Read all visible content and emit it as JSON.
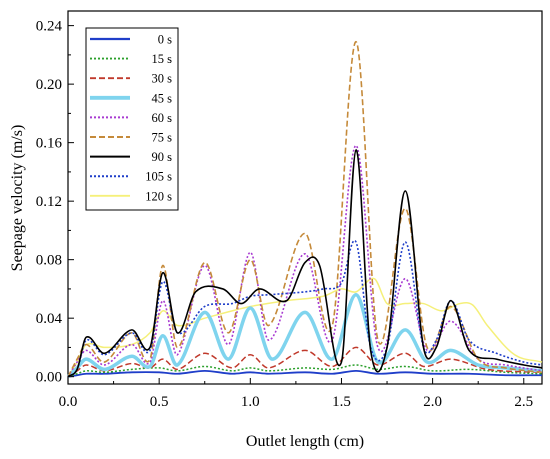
{
  "chart_data": {
    "type": "line",
    "xlabel": "Outlet length (cm)",
    "ylabel": "Seepage velocity (m/s)",
    "xlim": [
      0.0,
      2.6
    ],
    "ylim": [
      -0.005,
      0.25
    ],
    "xticks": [
      "0.0",
      "0.5",
      "1.0",
      "1.5",
      "2.0",
      "2.5"
    ],
    "yticks": [
      "0.00",
      "0.04",
      "0.08",
      "0.12",
      "0.16",
      "0.20",
      "0.24"
    ],
    "grid": false,
    "legend_position": "top-left",
    "series": [
      {
        "name": "0 s",
        "color": "#1f3ec9",
        "dash": "solid",
        "width": 1.8,
        "x": [
          0.0,
          0.05,
          0.1,
          0.2,
          0.35,
          0.5,
          0.6,
          0.75,
          0.9,
          1.0,
          1.1,
          1.3,
          1.45,
          1.58,
          1.7,
          1.85,
          2.0,
          2.2,
          2.4,
          2.6
        ],
        "y": [
          0.0,
          0.001,
          0.002,
          0.002,
          0.003,
          0.003,
          0.002,
          0.004,
          0.002,
          0.003,
          0.002,
          0.003,
          0.002,
          0.004,
          0.002,
          0.003,
          0.002,
          0.002,
          0.001,
          0.001
        ]
      },
      {
        "name": "15 s",
        "color": "#2ca02c",
        "dash": "dot",
        "width": 1.5,
        "x": [
          0.0,
          0.05,
          0.1,
          0.2,
          0.35,
          0.5,
          0.6,
          0.75,
          0.9,
          1.0,
          1.1,
          1.3,
          1.45,
          1.58,
          1.7,
          1.85,
          2.0,
          2.2,
          2.4,
          2.6
        ],
        "y": [
          0.0,
          0.002,
          0.004,
          0.003,
          0.005,
          0.006,
          0.004,
          0.007,
          0.004,
          0.006,
          0.004,
          0.006,
          0.005,
          0.008,
          0.005,
          0.007,
          0.004,
          0.005,
          0.003,
          0.002
        ]
      },
      {
        "name": "30 s",
        "color": "#c0392b",
        "dash": "dash",
        "width": 1.5,
        "x": [
          0.0,
          0.05,
          0.1,
          0.2,
          0.35,
          0.45,
          0.52,
          0.6,
          0.75,
          0.9,
          1.0,
          1.1,
          1.3,
          1.45,
          1.58,
          1.7,
          1.85,
          1.95,
          2.1,
          2.3,
          2.6
        ],
        "y": [
          0.0,
          0.004,
          0.008,
          0.004,
          0.009,
          0.006,
          0.012,
          0.005,
          0.016,
          0.006,
          0.015,
          0.006,
          0.018,
          0.007,
          0.02,
          0.008,
          0.016,
          0.007,
          0.012,
          0.005,
          0.003
        ]
      },
      {
        "name": "45 s",
        "color": "#7fd4ee",
        "dash": "solid",
        "width": 3.5,
        "x": [
          0.0,
          0.05,
          0.1,
          0.2,
          0.35,
          0.45,
          0.52,
          0.6,
          0.75,
          0.88,
          1.0,
          1.12,
          1.3,
          1.45,
          1.58,
          1.7,
          1.85,
          1.97,
          2.1,
          2.25,
          2.4,
          2.6
        ],
        "y": [
          0.0,
          0.006,
          0.012,
          0.005,
          0.014,
          0.007,
          0.028,
          0.008,
          0.044,
          0.012,
          0.047,
          0.012,
          0.044,
          0.012,
          0.056,
          0.01,
          0.032,
          0.01,
          0.018,
          0.008,
          0.006,
          0.004
        ]
      },
      {
        "name": "60 s",
        "color": "#a83bd1",
        "dash": "dot",
        "width": 1.6,
        "x": [
          0.0,
          0.05,
          0.1,
          0.2,
          0.35,
          0.45,
          0.52,
          0.6,
          0.75,
          0.88,
          1.0,
          1.1,
          1.3,
          1.45,
          1.58,
          1.7,
          1.85,
          1.97,
          2.1,
          2.25,
          2.4,
          2.6
        ],
        "y": [
          0.0,
          0.01,
          0.018,
          0.008,
          0.022,
          0.01,
          0.052,
          0.015,
          0.076,
          0.022,
          0.085,
          0.025,
          0.084,
          0.025,
          0.158,
          0.02,
          0.067,
          0.018,
          0.038,
          0.012,
          0.008,
          0.004
        ]
      },
      {
        "name": "75 s",
        "color": "#c58a3a",
        "dash": "dash",
        "width": 1.6,
        "x": [
          0.0,
          0.05,
          0.1,
          0.2,
          0.35,
          0.45,
          0.52,
          0.6,
          0.75,
          0.88,
          1.0,
          1.1,
          1.3,
          1.45,
          1.58,
          1.7,
          1.85,
          1.97,
          2.1,
          2.25,
          2.4,
          2.6
        ],
        "y": [
          0.0,
          0.012,
          0.022,
          0.01,
          0.03,
          0.012,
          0.076,
          0.02,
          0.078,
          0.03,
          0.08,
          0.035,
          0.098,
          0.035,
          0.229,
          0.025,
          0.115,
          0.02,
          0.048,
          0.012,
          0.006,
          0.003
        ]
      },
      {
        "name": "90 s",
        "color": "#000000",
        "dash": "solid",
        "width": 1.6,
        "x": [
          0.0,
          0.05,
          0.1,
          0.2,
          0.35,
          0.45,
          0.52,
          0.6,
          0.7,
          0.85,
          0.95,
          1.05,
          1.2,
          1.3,
          1.38,
          1.5,
          1.58,
          1.66,
          1.75,
          1.85,
          1.95,
          2.02,
          2.1,
          2.2,
          2.35,
          2.5,
          2.6
        ],
        "y": [
          0.0,
          0.005,
          0.027,
          0.016,
          0.032,
          0.02,
          0.071,
          0.03,
          0.058,
          0.06,
          0.05,
          0.06,
          0.052,
          0.078,
          0.076,
          0.01,
          0.155,
          0.018,
          0.02,
          0.127,
          0.02,
          0.02,
          0.052,
          0.018,
          0.012,
          0.008,
          0.006
        ]
      },
      {
        "name": "105 s",
        "color": "#1f3ec9",
        "dash": "dot",
        "width": 1.6,
        "x": [
          0.0,
          0.05,
          0.1,
          0.2,
          0.35,
          0.45,
          0.52,
          0.6,
          0.75,
          0.9,
          1.0,
          1.1,
          1.3,
          1.4,
          1.5,
          1.58,
          1.66,
          1.75,
          1.85,
          1.95,
          2.02,
          2.1,
          2.2,
          2.35,
          2.5,
          2.6
        ],
        "y": [
          0.0,
          0.005,
          0.025,
          0.015,
          0.03,
          0.018,
          0.065,
          0.03,
          0.048,
          0.05,
          0.055,
          0.056,
          0.058,
          0.06,
          0.064,
          0.092,
          0.02,
          0.02,
          0.092,
          0.02,
          0.025,
          0.052,
          0.025,
          0.016,
          0.01,
          0.008
        ]
      },
      {
        "name": "120 s",
        "color": "#f5f07a",
        "dash": "solid",
        "width": 1.5,
        "x": [
          0.0,
          0.05,
          0.1,
          0.2,
          0.35,
          0.45,
          0.52,
          0.6,
          0.75,
          0.9,
          1.0,
          1.2,
          1.4,
          1.5,
          1.58,
          1.68,
          1.75,
          1.85,
          1.95,
          2.05,
          2.15,
          2.22,
          2.3,
          2.45,
          2.6
        ],
        "y": [
          0.0,
          0.01,
          0.022,
          0.02,
          0.022,
          0.03,
          0.045,
          0.035,
          0.04,
          0.045,
          0.048,
          0.052,
          0.055,
          0.06,
          0.058,
          0.067,
          0.05,
          0.05,
          0.05,
          0.045,
          0.05,
          0.049,
          0.035,
          0.015,
          0.01
        ]
      }
    ]
  }
}
